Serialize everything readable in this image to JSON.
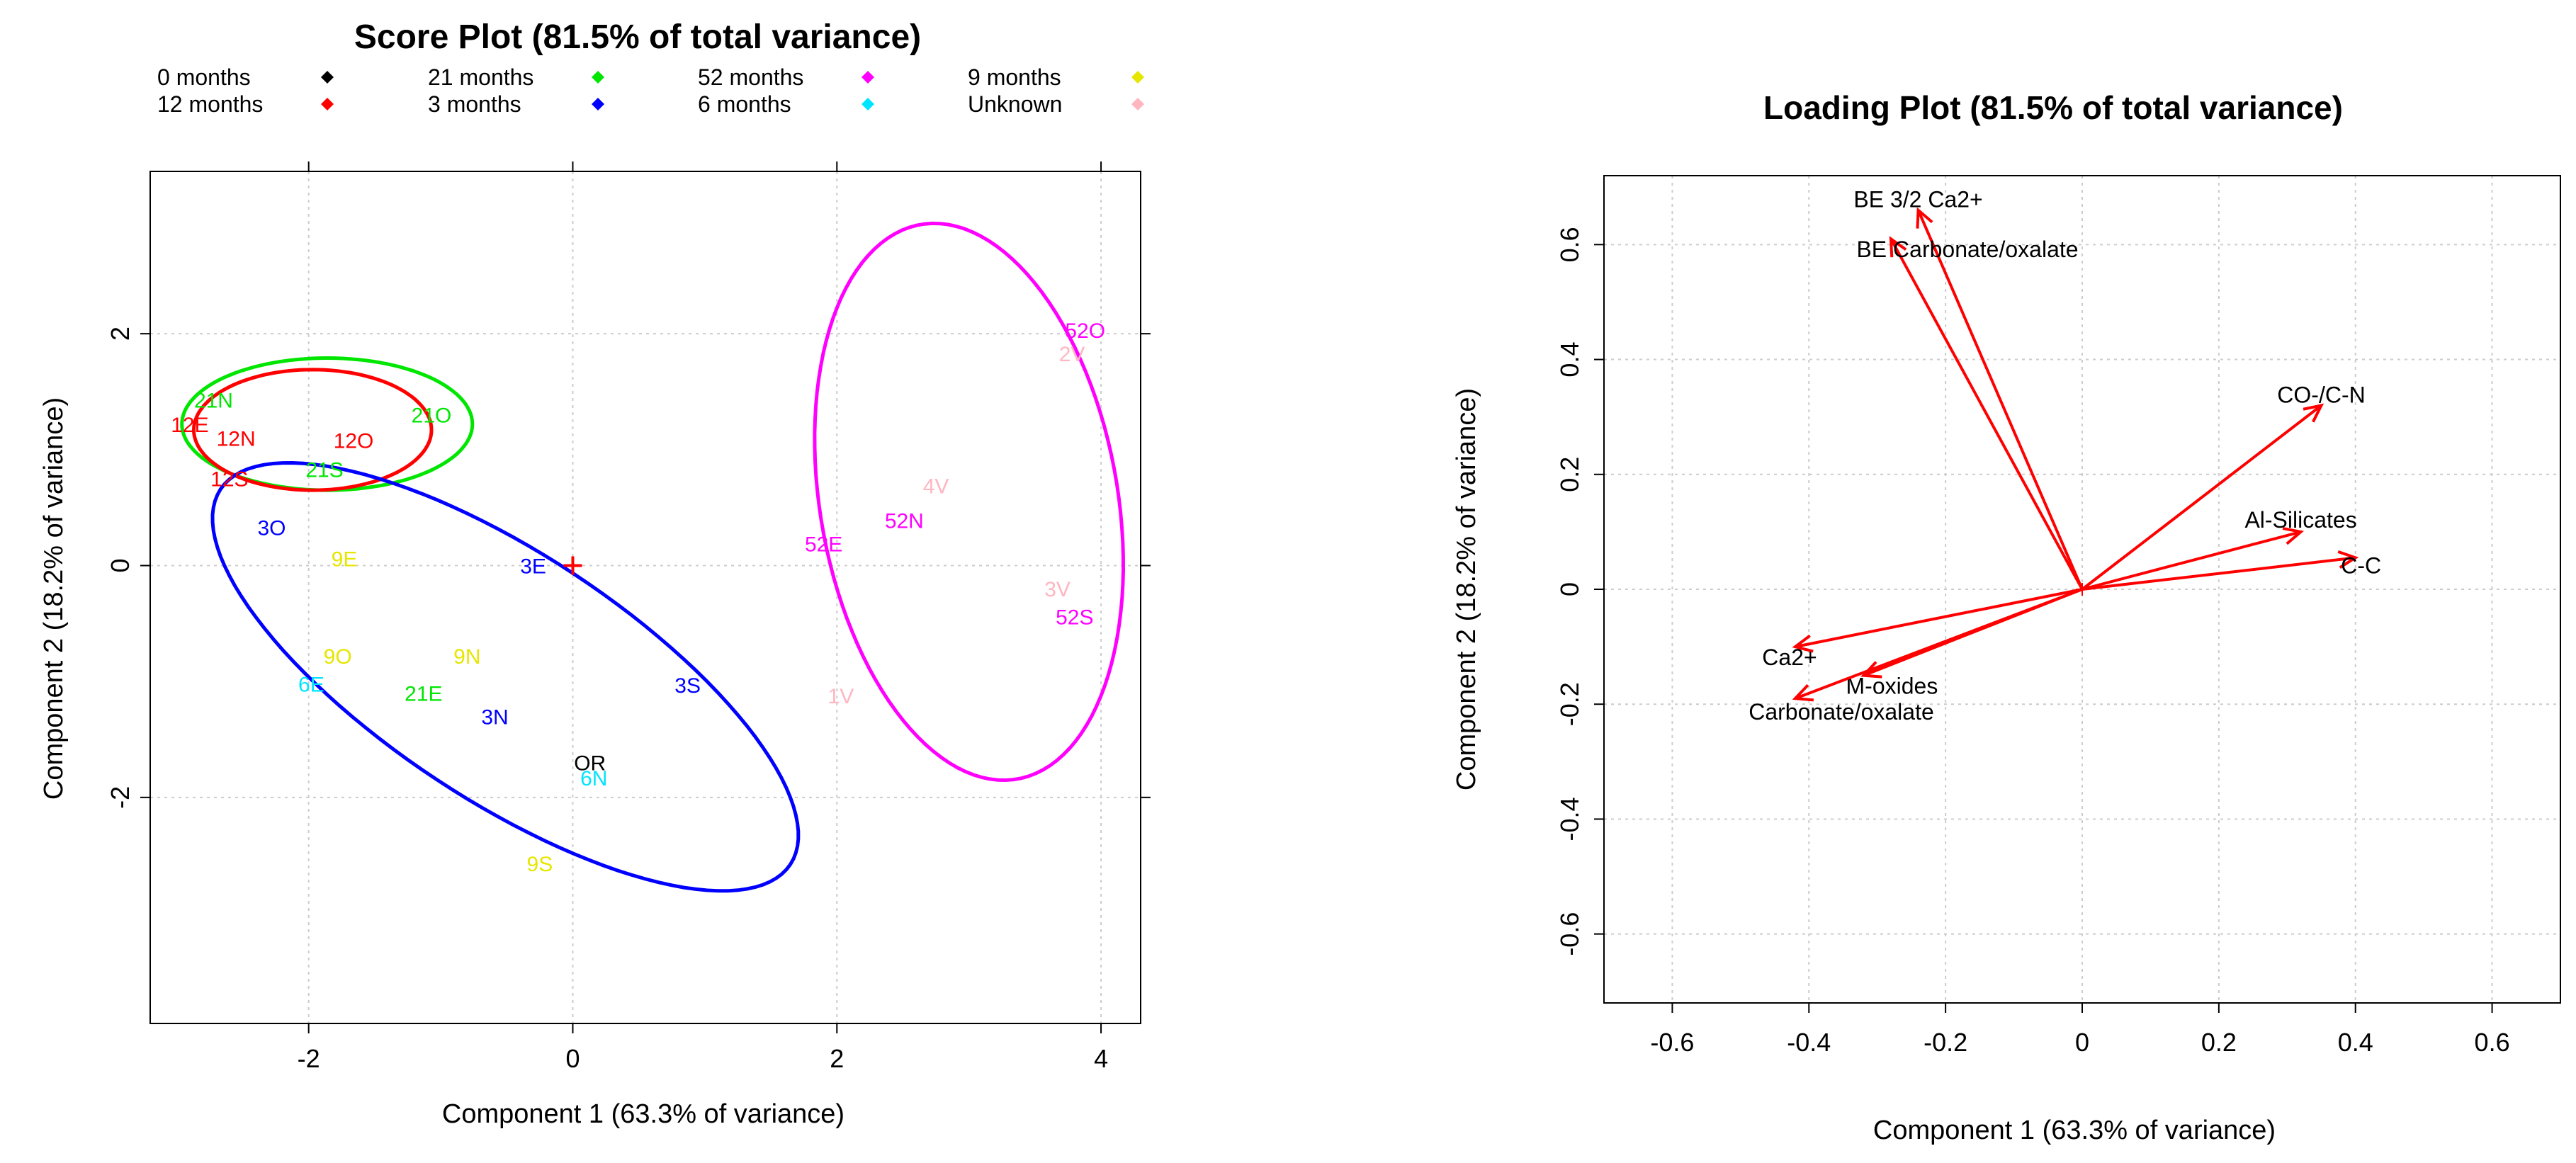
{
  "chart_data": [
    {
      "type": "scatter",
      "title": "Score Plot (81.5% of total variance)",
      "xlabel": "Component 1 (63.3% of variance)",
      "ylabel": "Component 2 (18.2% of variance)",
      "xlim": [
        -3.2,
        4.3
      ],
      "ylim": [
        -3.95,
        3.4
      ],
      "xticks": [
        -2,
        0,
        2,
        4
      ],
      "yticks": [
        -2,
        0,
        2
      ],
      "grid": true,
      "legend_position": "top",
      "legend": [
        {
          "label": "0 months",
          "color": "#000000"
        },
        {
          "label": "12 months",
          "color": "#ff0000"
        },
        {
          "label": "21 months",
          "color": "#00e600"
        },
        {
          "label": "3 months",
          "color": "#0000ff"
        },
        {
          "label": "52 months",
          "color": "#ff00ff"
        },
        {
          "label": "6 months",
          "color": "#00e5ff"
        },
        {
          "label": "9 months",
          "color": "#e6e600"
        },
        {
          "label": "Unknown",
          "color": "#ffb6c1"
        }
      ],
      "points": [
        {
          "label": "21N",
          "x": -2.72,
          "y": 1.43,
          "color": "#00e600"
        },
        {
          "label": "12E",
          "x": -2.9,
          "y": 1.22,
          "color": "#ff0000"
        },
        {
          "label": "12N",
          "x": -2.55,
          "y": 1.1,
          "color": "#ff0000"
        },
        {
          "label": "12S",
          "x": -2.6,
          "y": 0.75,
          "color": "#ff0000"
        },
        {
          "label": "21S",
          "x": -1.88,
          "y": 0.83,
          "color": "#00e600"
        },
        {
          "label": "12O",
          "x": -1.66,
          "y": 1.08,
          "color": "#ff0000"
        },
        {
          "label": "21O",
          "x": -1.07,
          "y": 1.3,
          "color": "#00e600"
        },
        {
          "label": "3O",
          "x": -2.28,
          "y": 0.33,
          "color": "#0000ff"
        },
        {
          "label": "9E",
          "x": -1.73,
          "y": 0.06,
          "color": "#e6e600"
        },
        {
          "label": "3E",
          "x": -0.3,
          "y": 0.0,
          "color": "#0000ff"
        },
        {
          "label": "9O",
          "x": -1.78,
          "y": -0.78,
          "color": "#e6e600"
        },
        {
          "label": "9N",
          "x": -0.8,
          "y": -0.78,
          "color": "#e6e600"
        },
        {
          "label": "6E",
          "x": -1.98,
          "y": -1.02,
          "color": "#00e5ff"
        },
        {
          "label": "21E",
          "x": -1.13,
          "y": -1.1,
          "color": "#00e600"
        },
        {
          "label": "3N",
          "x": -0.59,
          "y": -1.3,
          "color": "#0000ff"
        },
        {
          "label": "3S",
          "x": 0.87,
          "y": -1.03,
          "color": "#0000ff"
        },
        {
          "label": "OR",
          "x": 0.13,
          "y": -1.7,
          "color": "#000000"
        },
        {
          "label": "6N",
          "x": 0.16,
          "y": -1.83,
          "color": "#00e5ff"
        },
        {
          "label": "9S",
          "x": -0.25,
          "y": -2.57,
          "color": "#e6e600"
        },
        {
          "label": "52O",
          "x": 3.88,
          "y": 2.03,
          "color": "#ff00ff"
        },
        {
          "label": "2V",
          "x": 3.78,
          "y": 1.83,
          "color": "#ffb6c1"
        },
        {
          "label": "4V",
          "x": 2.75,
          "y": 0.69,
          "color": "#ffb6c1"
        },
        {
          "label": "52N",
          "x": 2.51,
          "y": 0.39,
          "color": "#ff00ff"
        },
        {
          "label": "52E",
          "x": 1.9,
          "y": 0.19,
          "color": "#ff00ff"
        },
        {
          "label": "3V",
          "x": 3.67,
          "y": -0.2,
          "color": "#ffb6c1"
        },
        {
          "label": "52S",
          "x": 3.8,
          "y": -0.44,
          "color": "#ff00ff"
        },
        {
          "label": "1V",
          "x": 2.03,
          "y": -1.12,
          "color": "#ffb6c1"
        }
      ],
      "ellipses": [
        {
          "group": "21 months",
          "color": "#00e600",
          "cx": -1.86,
          "cy": 1.22,
          "rx": 1.1,
          "ry": 0.57,
          "angle": 0
        },
        {
          "group": "12 months",
          "color": "#ff0000",
          "cx": -1.97,
          "cy": 1.17,
          "rx": 0.9,
          "ry": 0.52,
          "angle": 0
        },
        {
          "group": "3 months",
          "color": "#0000ff",
          "cx": -0.51,
          "cy": -0.96,
          "rx": 2.7,
          "ry": 1.02,
          "angle": -38
        },
        {
          "group": "52 months",
          "color": "#ff00ff",
          "cx": 3.0,
          "cy": 0.55,
          "rx": 2.42,
          "ry": 1.13,
          "angle": -82
        }
      ],
      "origin_marker": {
        "x": 0,
        "y": 0,
        "color": "#ff0000"
      }
    },
    {
      "type": "biplot-loadings",
      "title": "Loading Plot (81.5% of total variance)",
      "xlabel": "Component  1 (63.3% of variance)",
      "ylabel": "Component 2 (18.2% of variance)",
      "xlim": [
        -0.7,
        0.7
      ],
      "ylim": [
        -0.72,
        0.72
      ],
      "xticks": [
        -0.6,
        -0.4,
        -0.2,
        0.0,
        0.2,
        0.4,
        0.6
      ],
      "yticks": [
        0.6,
        0.4,
        0.2,
        0.0,
        -0.2,
        -0.4,
        -0.6
      ],
      "grid": true,
      "arrow_color": "#ff0000",
      "loadings": [
        {
          "label": "BE 3/2 Ca2+",
          "x": -0.24,
          "y": 0.66
        },
        {
          "label": "BE Carbonate/oxalate",
          "x": -0.28,
          "y": 0.61
        },
        {
          "label": "CO-/C-N",
          "x": 0.35,
          "y": 0.32
        },
        {
          "label": "Al-Silicates",
          "x": 0.32,
          "y": 0.1
        },
        {
          "label": "C-C",
          "x": 0.4,
          "y": 0.055
        },
        {
          "label": "Ca2+",
          "x": -0.42,
          "y": -0.1
        },
        {
          "label": "M-oxides",
          "x": -0.32,
          "y": -0.15
        },
        {
          "label": "Carbonate/oxalate",
          "x": -0.42,
          "y": -0.19
        }
      ]
    }
  ]
}
